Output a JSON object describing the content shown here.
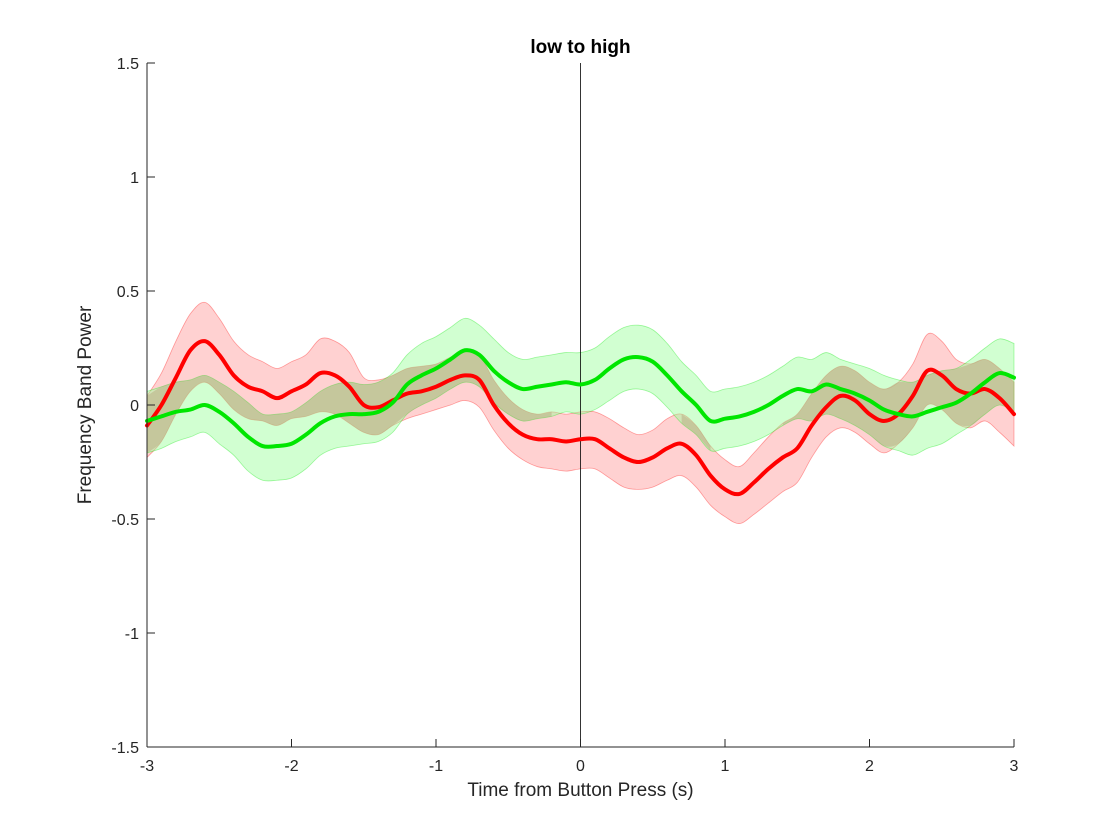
{
  "chart_data": {
    "type": "line",
    "title": "low to high",
    "xlabel": "Time from Button Press (s)",
    "ylabel": "Frequency Band Power",
    "xlim": [
      -3,
      3
    ],
    "ylim": [
      -1.5,
      1.5
    ],
    "xticks": [
      -3,
      -2,
      -1,
      0,
      1,
      2,
      3
    ],
    "yticks": [
      -1.5,
      -1,
      -0.5,
      0,
      0.5,
      1,
      1.5
    ],
    "grid": false,
    "legend": "none",
    "vertical_line_x": 0,
    "x": [
      -3.0,
      -2.9,
      -2.8,
      -2.7,
      -2.6,
      -2.5,
      -2.4,
      -2.3,
      -2.2,
      -2.1,
      -2.0,
      -1.9,
      -1.8,
      -1.7,
      -1.6,
      -1.5,
      -1.4,
      -1.3,
      -1.2,
      -1.1,
      -1.0,
      -0.9,
      -0.8,
      -0.7,
      -0.6,
      -0.5,
      -0.4,
      -0.3,
      -0.2,
      -0.1,
      0.0,
      0.1,
      0.2,
      0.3,
      0.4,
      0.5,
      0.6,
      0.7,
      0.8,
      0.9,
      1.0,
      1.1,
      1.2,
      1.3,
      1.4,
      1.5,
      1.6,
      1.7,
      1.8,
      1.9,
      2.0,
      2.1,
      2.2,
      2.3,
      2.4,
      2.5,
      2.6,
      2.7,
      2.8,
      2.9,
      3.0
    ],
    "series": [
      {
        "color": "#ff0000",
        "band_color": "#ff9999",
        "values": [
          -0.09,
          0.0,
          0.12,
          0.24,
          0.28,
          0.22,
          0.13,
          0.08,
          0.06,
          0.03,
          0.06,
          0.09,
          0.14,
          0.13,
          0.08,
          0.0,
          -0.01,
          0.02,
          0.05,
          0.06,
          0.08,
          0.11,
          0.13,
          0.11,
          0.0,
          -0.08,
          -0.13,
          -0.15,
          -0.15,
          -0.16,
          -0.15,
          -0.15,
          -0.19,
          -0.23,
          -0.25,
          -0.23,
          -0.19,
          -0.17,
          -0.22,
          -0.31,
          -0.37,
          -0.39,
          -0.34,
          -0.28,
          -0.23,
          -0.19,
          -0.09,
          -0.01,
          0.04,
          0.02,
          -0.04,
          -0.07,
          -0.04,
          0.04,
          0.15,
          0.13,
          0.07,
          0.05,
          0.07,
          0.03,
          -0.04
        ],
        "lower": [
          -0.23,
          -0.16,
          -0.04,
          0.06,
          0.1,
          0.05,
          -0.02,
          -0.06,
          -0.07,
          -0.09,
          -0.06,
          -0.05,
          -0.03,
          -0.04,
          -0.08,
          -0.12,
          -0.13,
          -0.09,
          -0.06,
          -0.04,
          -0.02,
          0.0,
          0.02,
          -0.01,
          -0.11,
          -0.19,
          -0.24,
          -0.27,
          -0.28,
          -0.29,
          -0.28,
          -0.28,
          -0.32,
          -0.36,
          -0.37,
          -0.36,
          -0.33,
          -0.31,
          -0.36,
          -0.44,
          -0.49,
          -0.52,
          -0.48,
          -0.43,
          -0.38,
          -0.34,
          -0.23,
          -0.14,
          -0.1,
          -0.12,
          -0.17,
          -0.21,
          -0.17,
          -0.1,
          0.0,
          -0.02,
          -0.08,
          -0.1,
          -0.07,
          -0.12,
          -0.18
        ],
        "upper": [
          0.04,
          0.14,
          0.28,
          0.4,
          0.45,
          0.38,
          0.28,
          0.22,
          0.19,
          0.16,
          0.19,
          0.22,
          0.29,
          0.28,
          0.23,
          0.12,
          0.11,
          0.13,
          0.16,
          0.17,
          0.18,
          0.21,
          0.24,
          0.22,
          0.11,
          0.03,
          -0.02,
          -0.04,
          -0.03,
          -0.04,
          -0.03,
          -0.03,
          -0.06,
          -0.1,
          -0.13,
          -0.11,
          -0.06,
          -0.04,
          -0.09,
          -0.18,
          -0.24,
          -0.27,
          -0.21,
          -0.14,
          -0.08,
          -0.04,
          0.05,
          0.13,
          0.17,
          0.15,
          0.1,
          0.07,
          0.1,
          0.18,
          0.31,
          0.28,
          0.2,
          0.18,
          0.2,
          0.16,
          0.1
        ]
      },
      {
        "color": "#00e600",
        "band_color": "#99ff99",
        "values": [
          -0.07,
          -0.05,
          -0.03,
          -0.02,
          0.0,
          -0.03,
          -0.08,
          -0.14,
          -0.18,
          -0.18,
          -0.17,
          -0.13,
          -0.08,
          -0.05,
          -0.04,
          -0.04,
          -0.03,
          0.01,
          0.09,
          0.13,
          0.16,
          0.2,
          0.24,
          0.22,
          0.15,
          0.1,
          0.07,
          0.08,
          0.09,
          0.1,
          0.09,
          0.11,
          0.16,
          0.2,
          0.21,
          0.19,
          0.13,
          0.06,
          0.0,
          -0.07,
          -0.06,
          -0.05,
          -0.03,
          0.0,
          0.04,
          0.07,
          0.06,
          0.09,
          0.07,
          0.05,
          0.02,
          -0.02,
          -0.04,
          -0.05,
          -0.03,
          -0.01,
          0.01,
          0.05,
          0.1,
          0.14,
          0.12
        ],
        "lower": [
          -0.21,
          -0.19,
          -0.16,
          -0.14,
          -0.12,
          -0.17,
          -0.22,
          -0.29,
          -0.33,
          -0.33,
          -0.32,
          -0.28,
          -0.22,
          -0.19,
          -0.18,
          -0.17,
          -0.16,
          -0.12,
          -0.04,
          0.0,
          0.03,
          0.07,
          0.1,
          0.08,
          0.01,
          -0.04,
          -0.07,
          -0.06,
          -0.05,
          -0.03,
          -0.04,
          -0.02,
          0.02,
          0.06,
          0.07,
          0.05,
          -0.01,
          -0.08,
          -0.13,
          -0.2,
          -0.19,
          -0.18,
          -0.16,
          -0.13,
          -0.09,
          -0.06,
          -0.07,
          -0.04,
          -0.06,
          -0.09,
          -0.13,
          -0.18,
          -0.2,
          -0.22,
          -0.19,
          -0.17,
          -0.13,
          -0.09,
          -0.04,
          0.0,
          -0.03
        ],
        "upper": [
          0.06,
          0.08,
          0.1,
          0.11,
          0.13,
          0.1,
          0.06,
          0.01,
          -0.04,
          -0.04,
          -0.03,
          0.01,
          0.06,
          0.09,
          0.1,
          0.09,
          0.1,
          0.14,
          0.22,
          0.27,
          0.3,
          0.34,
          0.38,
          0.35,
          0.29,
          0.23,
          0.2,
          0.21,
          0.22,
          0.23,
          0.23,
          0.25,
          0.3,
          0.34,
          0.35,
          0.33,
          0.27,
          0.19,
          0.13,
          0.06,
          0.07,
          0.08,
          0.1,
          0.13,
          0.17,
          0.21,
          0.2,
          0.23,
          0.2,
          0.18,
          0.16,
          0.13,
          0.11,
          0.1,
          0.13,
          0.15,
          0.16,
          0.2,
          0.25,
          0.29,
          0.27
        ]
      }
    ]
  }
}
